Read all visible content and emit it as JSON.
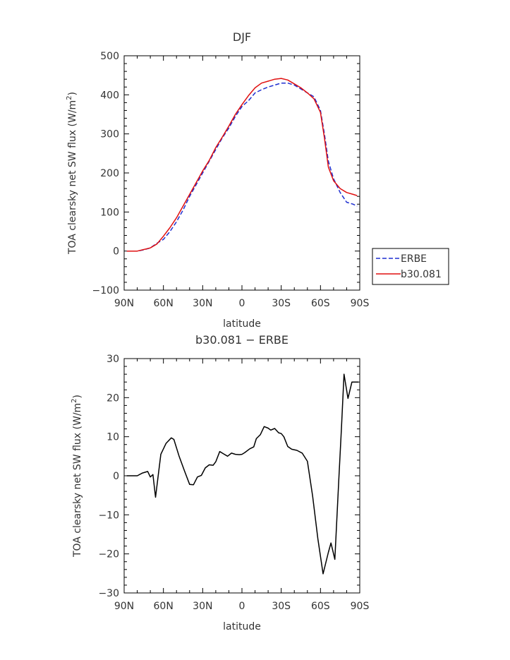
{
  "chart_data": [
    {
      "type": "line",
      "title": "DJF",
      "xlabel": "latitude",
      "ylabel": "TOA clearsky net SW flux (W/m",
      "ylabel_sup": "2",
      "ylabel_end": ")",
      "xlim": [
        90,
        -90
      ],
      "ylim": [
        -100,
        500
      ],
      "x_ticks": [
        90,
        60,
        30,
        0,
        -30,
        -60,
        -90
      ],
      "x_ticklabels": [
        "90N",
        "60N",
        "30N",
        "0",
        "30S",
        "60S",
        "90S"
      ],
      "y_ticks": [
        -100,
        0,
        100,
        200,
        300,
        400,
        500
      ],
      "y_ticklabels": [
        "−100",
        "0",
        "100",
        "200",
        "300",
        "400",
        "500"
      ],
      "legend_placement": "right",
      "series": [
        {
          "name": "ERBE",
          "color": "#1f2fd0",
          "dash": "dashed",
          "x": [
            88,
            80,
            75,
            70,
            65,
            60,
            55,
            50,
            45,
            40,
            35,
            30,
            25,
            20,
            15,
            10,
            5,
            0,
            -5,
            -10,
            -15,
            -20,
            -25,
            -30,
            -35,
            -40,
            -45,
            -50,
            -55,
            -60,
            -63,
            -66,
            -70,
            -75,
            -80,
            -85,
            -88
          ],
          "y": [
            0,
            0,
            3,
            8,
            20,
            30,
            50,
            75,
            105,
            140,
            170,
            200,
            230,
            260,
            290,
            315,
            345,
            370,
            385,
            405,
            413,
            420,
            425,
            430,
            430,
            425,
            415,
            405,
            395,
            360,
            300,
            230,
            185,
            150,
            125,
            120,
            115
          ]
        },
        {
          "name": "b30.081",
          "color": "#e01010",
          "dash": "solid",
          "x": [
            88,
            80,
            75,
            70,
            65,
            60,
            55,
            50,
            45,
            40,
            35,
            30,
            25,
            20,
            15,
            10,
            5,
            0,
            -5,
            -10,
            -15,
            -20,
            -25,
            -30,
            -35,
            -40,
            -45,
            -50,
            -55,
            -60,
            -63,
            -66,
            -70,
            -75,
            -80,
            -85,
            -88
          ],
          "y": [
            0,
            0,
            4,
            8,
            18,
            38,
            60,
            85,
            115,
            145,
            175,
            205,
            232,
            265,
            292,
            320,
            350,
            375,
            398,
            418,
            430,
            435,
            440,
            442,
            438,
            428,
            418,
            405,
            390,
            355,
            290,
            215,
            180,
            160,
            150,
            145,
            142
          ]
        }
      ]
    },
    {
      "type": "line",
      "title": "b30.081 − ERBE",
      "xlabel": "latitude",
      "ylabel": "TOA clearsky net SW flux (W/m",
      "ylabel_sup": "2",
      "ylabel_end": ")",
      "xlim": [
        90,
        -90
      ],
      "ylim": [
        -30,
        30
      ],
      "x_ticks": [
        90,
        60,
        30,
        0,
        -30,
        -60,
        -90
      ],
      "x_ticklabels": [
        "90N",
        "60N",
        "30N",
        "0",
        "30S",
        "60S",
        "90S"
      ],
      "y_ticks": [
        -30,
        -20,
        -10,
        0,
        10,
        20,
        30
      ],
      "y_ticklabels": [
        "−30",
        "−20",
        "−10",
        "0",
        "10",
        "20",
        "30"
      ],
      "series": [
        {
          "color": "#000000",
          "dash": "solid",
          "x": [
            88,
            84,
            80,
            76,
            72,
            70,
            68,
            66,
            62,
            58,
            54,
            52,
            48,
            44,
            40,
            37,
            34,
            31,
            28,
            25,
            22,
            20,
            17,
            14,
            11,
            8,
            5,
            2,
            0,
            -2,
            -6,
            -9,
            -11,
            -14,
            -17,
            -20,
            -22,
            -25,
            -28,
            -30,
            -32,
            -35,
            -38,
            -42,
            -46,
            -50,
            -54,
            -58,
            -62,
            -66,
            -68,
            -71,
            -74,
            -76,
            -78,
            -81,
            -84,
            -87,
            -89
          ],
          "y": [
            0,
            0,
            0,
            0.7,
            1.1,
            -0.3,
            0.3,
            -5.5,
            5.5,
            8.3,
            9.7,
            9.3,
            5,
            1.3,
            -2.2,
            -2.3,
            -0.3,
            0.1,
            2,
            2.8,
            2.7,
            3.6,
            6.2,
            5.6,
            5,
            5.8,
            5.5,
            5.4,
            5.5,
            5.9,
            6.9,
            7.4,
            9.5,
            10.5,
            12.6,
            12.2,
            11.7,
            12.1,
            11,
            10.8,
            10,
            7.5,
            6.8,
            6.5,
            5.8,
            3.7,
            -5.2,
            -16.1,
            -25.1,
            -19.6,
            -17.2,
            -21.4,
            -1,
            12,
            26,
            19.8,
            24,
            24,
            24
          ],
          "x_note": "",
          "y_note": ""
        }
      ]
    }
  ],
  "colors": {
    "axis": "#000000",
    "text": "#333333"
  }
}
